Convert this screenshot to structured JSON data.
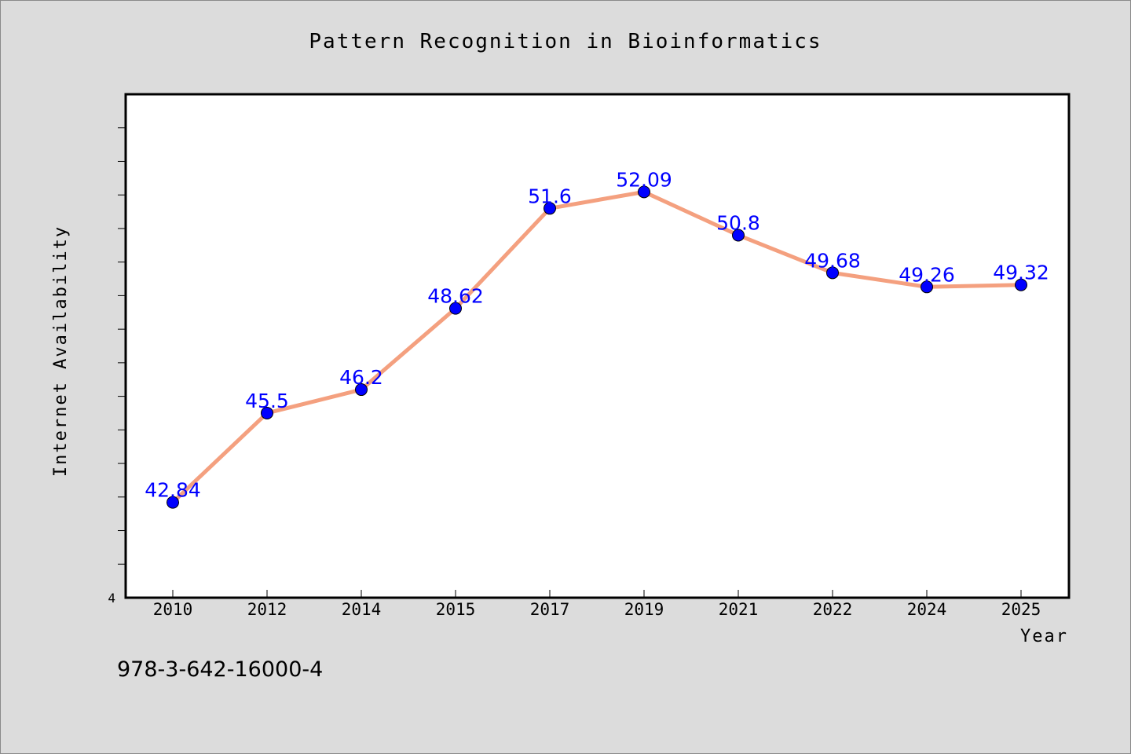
{
  "chart_data": {
    "type": "line",
    "title": "Pattern Recognition in Bioinformatics",
    "xlabel": "Year",
    "ylabel": "Internet Availability",
    "categories": [
      "2010",
      "2012",
      "2014",
      "2015",
      "2017",
      "2019",
      "2021",
      "2022",
      "2024",
      "2025"
    ],
    "series": [
      {
        "values": [
          42.84,
          45.5,
          46.2,
          48.62,
          51.6,
          52.09,
          50.8,
          49.68,
          49.26,
          49.32
        ],
        "labels": [
          "42.84",
          "45.5",
          "46.2",
          "48.62",
          "51.6",
          "52.09",
          "50.8",
          "49.68",
          "49.26",
          "49.32"
        ]
      }
    ],
    "ylim": [
      40,
      55
    ],
    "y_ticks_labeled": [
      "4"
    ],
    "grid": false,
    "line_color": "#f4a07f",
    "marker_color": "#0000ff",
    "label_color": "#0000ff",
    "background_color": "#dcdcdc",
    "plot_background": "#ffffff"
  },
  "annotation": {
    "text": "978-3-642-16000-4"
  }
}
